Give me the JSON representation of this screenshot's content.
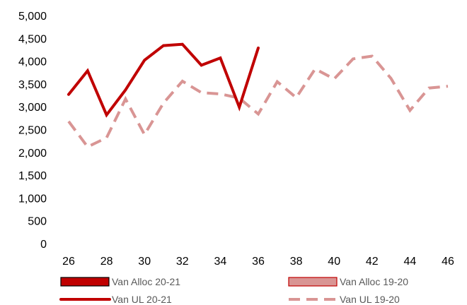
{
  "chart_data": {
    "type": "line",
    "x": [
      26,
      27,
      28,
      29,
      30,
      31,
      32,
      33,
      34,
      35,
      36,
      37,
      38,
      39,
      40,
      41,
      42,
      43,
      44,
      45,
      46
    ],
    "xticks": [
      26,
      28,
      30,
      32,
      34,
      36,
      38,
      40,
      42,
      44,
      46
    ],
    "xlim": [
      26,
      46
    ],
    "ylim": [
      0,
      5000
    ],
    "yticks": [
      0,
      500,
      1000,
      1500,
      2000,
      2500,
      3000,
      3500,
      4000,
      4500,
      5000
    ],
    "ytick_labels": [
      "0",
      "500",
      "1,000",
      "1,500",
      "2,000",
      "2,500",
      "3,000",
      "3,500",
      "4,000",
      "4,500",
      "5,000"
    ],
    "grid": false,
    "legend_position": "bottom",
    "series": [
      {
        "name": "Van UL 20-21",
        "style": "solid",
        "color": "#c00000",
        "values": [
          3270,
          3790,
          2820,
          3370,
          4020,
          4340,
          4370,
          3910,
          4070,
          2990,
          4290,
          null,
          null,
          null,
          null,
          null,
          null,
          null,
          null,
          null,
          null
        ]
      },
      {
        "name": "Van UL 19-20",
        "style": "dashed",
        "color": "#d99594",
        "values": [
          2680,
          2120,
          2320,
          3170,
          2390,
          3080,
          3560,
          3310,
          3280,
          3190,
          2840,
          3550,
          3200,
          3830,
          3610,
          4050,
          4110,
          3620,
          2920,
          3410,
          3450
        ]
      }
    ],
    "legend": [
      {
        "label": "Van Alloc 20-21",
        "kind": "box",
        "fill": "#c00000",
        "stroke": "#000000"
      },
      {
        "label": "Van Alloc 19-20",
        "kind": "box",
        "fill": "#d99594",
        "stroke": "#c00000"
      },
      {
        "label": "Van UL 20-21",
        "kind": "line",
        "color": "#c00000"
      },
      {
        "label": "Van UL 19-20",
        "kind": "dash",
        "color": "#d99594"
      }
    ]
  }
}
